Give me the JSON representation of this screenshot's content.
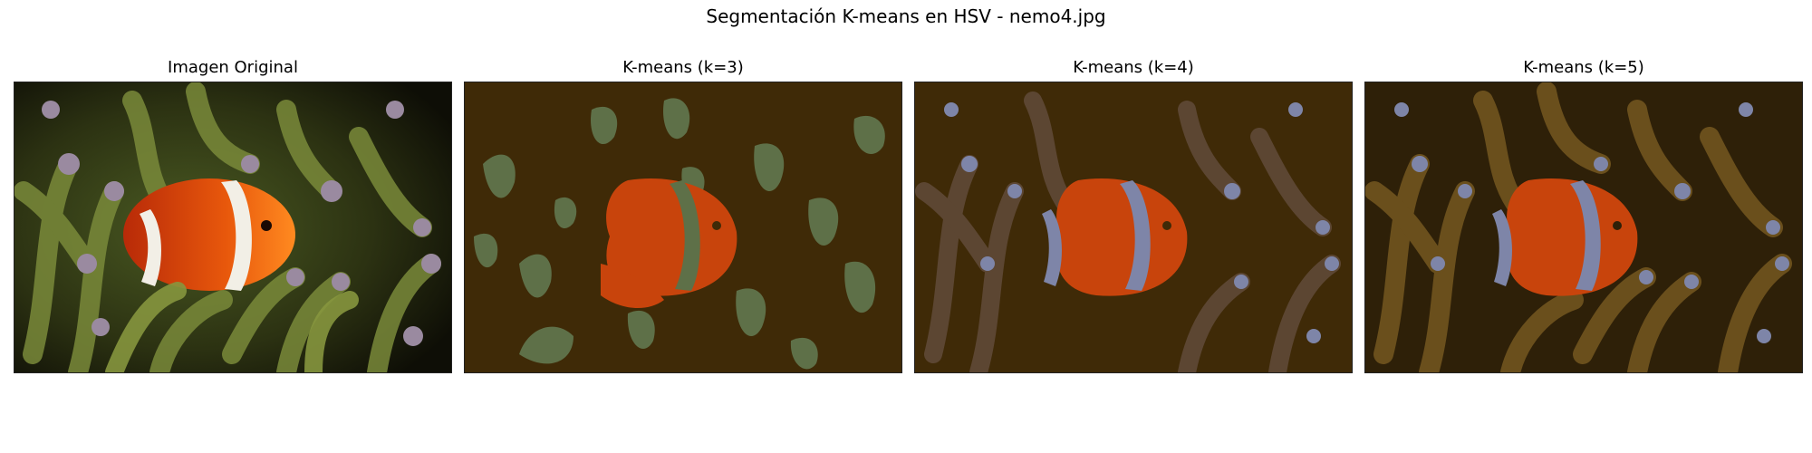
{
  "figure": {
    "suptitle": "Segmentación K-means en HSV - nemo4.jpg"
  },
  "panels": [
    {
      "title": "Imagen Original"
    },
    {
      "title": "K-means (k=3)"
    },
    {
      "title": "K-means (k=4)"
    },
    {
      "title": "K-means (k=5)"
    }
  ],
  "colors": {
    "k3": {
      "background": "#3f2a07",
      "anemone": "#5e7048",
      "fish": "#c8440c"
    },
    "k4": {
      "background": "#3f2a07",
      "anemone": "#5c4632",
      "tips": "#7e85a8",
      "fish": "#c8440c"
    },
    "k5": {
      "background": "#2e2008",
      "anemone": "#6a4f1c",
      "tips": "#7e85a8",
      "fish": "#c8440c",
      "dark": "#4a3412"
    }
  }
}
